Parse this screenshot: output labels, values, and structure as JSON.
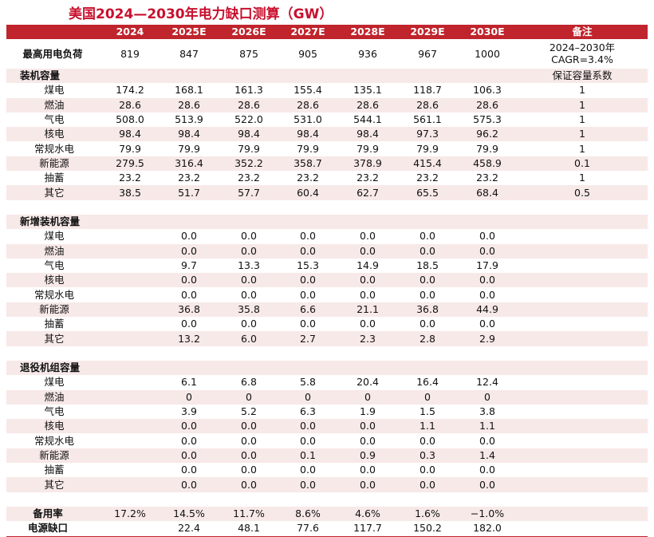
{
  "title": "美国2024—2030年电力缺口测算（GW）",
  "header": {
    "columns": [
      "2024",
      "2025E",
      "2026E",
      "2027E",
      "2028E",
      "2029E",
      "2030E"
    ],
    "note": "备注"
  },
  "load": {
    "label": "最高用电负荷",
    "values": [
      "819",
      "847",
      "875",
      "905",
      "936",
      "967",
      "1000"
    ],
    "note": [
      "2024–2030年",
      "CAGR=3.4%"
    ]
  },
  "sections": [
    {
      "title": "装机容量",
      "note": "保证容量系数",
      "rows": [
        {
          "label": "煤电",
          "values": [
            "174.2",
            "168.1",
            "161.3",
            "155.4",
            "135.1",
            "118.7",
            "106.3"
          ],
          "note": "1"
        },
        {
          "label": "燃油",
          "values": [
            "28.6",
            "28.6",
            "28.6",
            "28.6",
            "28.6",
            "28.6",
            "28.6"
          ],
          "note": "1"
        },
        {
          "label": "气电",
          "values": [
            "508.0",
            "513.9",
            "522.0",
            "531.0",
            "544.1",
            "561.1",
            "575.3"
          ],
          "note": "1"
        },
        {
          "label": "核电",
          "values": [
            "98.4",
            "98.4",
            "98.4",
            "98.4",
            "98.4",
            "97.3",
            "96.2"
          ],
          "note": "1"
        },
        {
          "label": "常规水电",
          "values": [
            "79.9",
            "79.9",
            "79.9",
            "79.9",
            "79.9",
            "79.9",
            "79.9"
          ],
          "note": "1"
        },
        {
          "label": "新能源",
          "values": [
            "279.5",
            "316.4",
            "352.2",
            "358.7",
            "378.9",
            "415.4",
            "458.9"
          ],
          "note": "0.1"
        },
        {
          "label": "抽蓄",
          "values": [
            "23.2",
            "23.2",
            "23.2",
            "23.2",
            "23.2",
            "23.2",
            "23.2"
          ],
          "note": "1"
        },
        {
          "label": "其它",
          "values": [
            "38.5",
            "51.7",
            "57.7",
            "60.4",
            "62.7",
            "65.5",
            "68.4"
          ],
          "note": "0.5"
        }
      ]
    },
    {
      "title": "新增装机容量",
      "rows": [
        {
          "label": "煤电",
          "values": [
            null,
            "0.0",
            "0.0",
            "0.0",
            "0.0",
            "0.0",
            "0.0"
          ]
        },
        {
          "label": "燃油",
          "values": [
            null,
            "0.0",
            "0.0",
            "0.0",
            "0.0",
            "0.0",
            "0.0"
          ]
        },
        {
          "label": "气电",
          "values": [
            null,
            "9.7",
            "13.3",
            "15.3",
            "14.9",
            "18.5",
            "17.9"
          ]
        },
        {
          "label": "核电",
          "values": [
            null,
            "0.0",
            "0.0",
            "0.0",
            "0.0",
            "0.0",
            "0.0"
          ]
        },
        {
          "label": "常规水电",
          "values": [
            null,
            "0.0",
            "0.0",
            "0.0",
            "0.0",
            "0.0",
            "0.0"
          ]
        },
        {
          "label": "新能源",
          "values": [
            null,
            "36.8",
            "35.8",
            "6.6",
            "21.1",
            "36.8",
            "44.9"
          ]
        },
        {
          "label": "抽蓄",
          "values": [
            null,
            "0.0",
            "0.0",
            "0.0",
            "0.0",
            "0.0",
            "0.0"
          ]
        },
        {
          "label": "其它",
          "values": [
            null,
            "13.2",
            "6.0",
            "2.7",
            "2.3",
            "2.8",
            "2.9"
          ]
        }
      ]
    },
    {
      "title": "退役机组容量",
      "rows": [
        {
          "label": "煤电",
          "values": [
            null,
            "6.1",
            "6.8",
            "5.8",
            "20.4",
            "16.4",
            "12.4"
          ]
        },
        {
          "label": "燃油",
          "values": [
            null,
            "0",
            "0",
            "0",
            "0",
            "0",
            "0"
          ]
        },
        {
          "label": "气电",
          "values": [
            null,
            "3.9",
            "5.2",
            "6.3",
            "1.9",
            "1.5",
            "3.8"
          ]
        },
        {
          "label": "核电",
          "values": [
            null,
            "0.0",
            "0.0",
            "0.0",
            "0.0",
            "1.1",
            "1.1"
          ]
        },
        {
          "label": "常规水电",
          "values": [
            null,
            "0.0",
            "0.0",
            "0.0",
            "0.0",
            "0.0",
            "0.0"
          ]
        },
        {
          "label": "新能源",
          "values": [
            null,
            "0.0",
            "0.0",
            "0.1",
            "0.9",
            "0.3",
            "1.4"
          ]
        },
        {
          "label": "抽蓄",
          "values": [
            null,
            "0.0",
            "0.0",
            "0.0",
            "0.0",
            "0.0",
            "0.0"
          ]
        },
        {
          "label": "其它",
          "values": [
            null,
            "0.0",
            "0.0",
            "0.0",
            "0.0",
            "0.0",
            "0.0"
          ]
        }
      ]
    }
  ],
  "footer": [
    {
      "label": "备用率",
      "values": [
        "17.2%",
        "14.5%",
        "11.7%",
        "8.6%",
        "4.6%",
        "1.6%",
        "−1.0%"
      ]
    },
    {
      "label": "电源缺口",
      "values": [
        null,
        "22.4",
        "48.1",
        "77.6",
        "117.7",
        "150.2",
        "182.0"
      ]
    }
  ]
}
